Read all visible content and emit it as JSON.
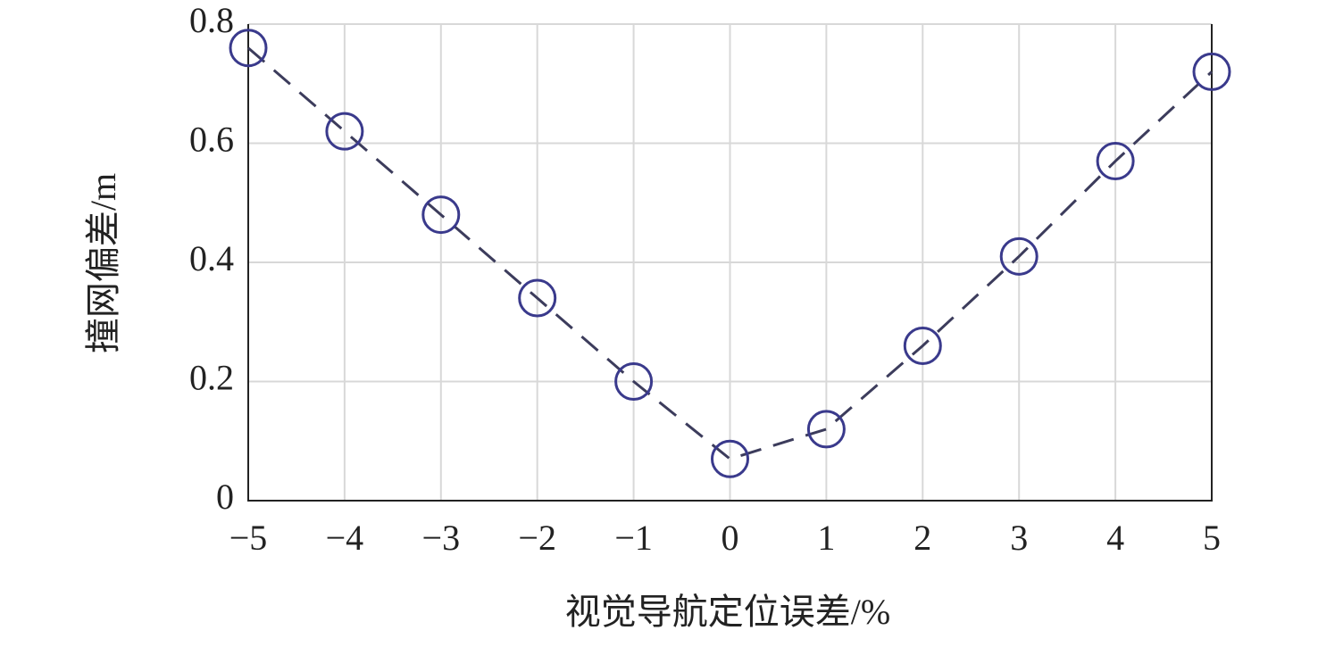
{
  "chart_data": {
    "type": "line",
    "xlabel": "视觉导航定位误差/%",
    "ylabel": "撞网偏差/m",
    "x": [
      -5,
      -4,
      -3,
      -2,
      -1,
      0,
      1,
      2,
      3,
      4,
      5
    ],
    "values": [
      0.76,
      0.62,
      0.48,
      0.34,
      0.2,
      0.07,
      0.12,
      0.26,
      0.41,
      0.57,
      0.72
    ],
    "color": "#3c3c5c",
    "marker_color": "#3a3a8c",
    "xlim": [
      -5,
      5
    ],
    "ylim": [
      0,
      0.8
    ],
    "xticks": [
      {
        "value": -5,
        "label": "−5"
      },
      {
        "value": -4,
        "label": "−4"
      },
      {
        "value": -3,
        "label": "−3"
      },
      {
        "value": -2,
        "label": "−2"
      },
      {
        "value": -1,
        "label": "−1"
      },
      0,
      1,
      2,
      3,
      4,
      5
    ],
    "yticks": [
      0,
      0.2,
      0.4,
      0.6,
      0.8
    ],
    "grid": true
  }
}
